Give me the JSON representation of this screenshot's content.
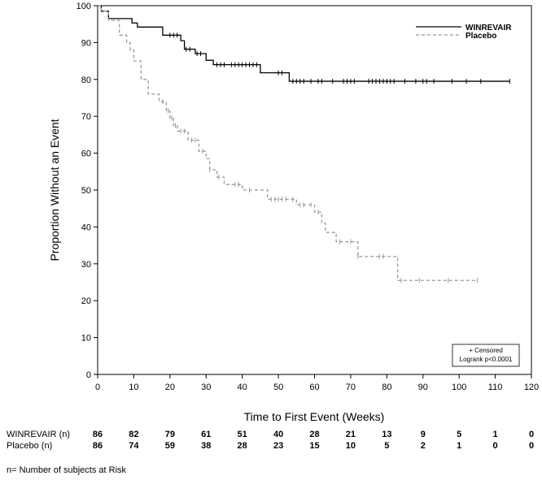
{
  "chart_data": {
    "type": "line",
    "step": true,
    "title": "",
    "xlabel": "Time to First Event (Weeks)",
    "ylabel": "Proportion Without an Event",
    "xlim": [
      0,
      120
    ],
    "ylim": [
      0,
      100
    ],
    "xticks": [
      0,
      10,
      20,
      30,
      40,
      50,
      60,
      70,
      80,
      90,
      100,
      110,
      120
    ],
    "yticks": [
      0,
      10,
      20,
      30,
      40,
      50,
      60,
      70,
      80,
      90,
      100
    ],
    "legend": {
      "position": "top-right",
      "entries": [
        "WINREVAIR",
        "Placebo"
      ]
    },
    "annotation": {
      "line1": "+ Censored",
      "line2": "Logrank p<0.0001"
    },
    "series": [
      {
        "name": "WINREVAIR",
        "color": "#000000",
        "dashed": false,
        "x": [
          0,
          1,
          3,
          9.5,
          11,
          18,
          23,
          24,
          27,
          30,
          32,
          45,
          53,
          114
        ],
        "y": [
          100,
          98.5,
          96.5,
          95.3,
          94.2,
          92,
          90.5,
          88.2,
          87,
          85.2,
          84,
          81.8,
          79.5,
          79.5
        ],
        "censored_x": [
          20,
          21,
          22,
          24.5,
          25.5,
          27.5,
          28.5,
          33,
          34,
          35,
          37,
          38,
          39,
          40,
          41,
          42,
          43,
          44,
          50,
          51,
          54,
          55,
          56,
          57,
          59,
          61,
          62,
          65,
          68,
          69,
          70,
          71,
          75,
          76,
          77,
          78,
          79,
          80,
          81,
          82,
          85,
          88,
          90,
          91,
          93,
          98,
          102,
          106,
          114
        ]
      },
      {
        "name": "Placebo",
        "color": "#999999",
        "dashed": true,
        "x": [
          0,
          1,
          3,
          6,
          8,
          9,
          10,
          12,
          14,
          17,
          19,
          20,
          21,
          22,
          25,
          28,
          30,
          31,
          33,
          35,
          40,
          47,
          55,
          60,
          62,
          63,
          66,
          72,
          83,
          105
        ],
        "y": [
          100,
          98.5,
          96,
          92,
          90,
          88,
          85,
          80,
          76,
          74,
          71.5,
          69.5,
          67.5,
          66,
          63.5,
          60.5,
          58.5,
          55.5,
          53.5,
          51.5,
          50,
          47.5,
          46,
          44,
          41,
          38.5,
          36,
          32,
          25.5,
          25.5
        ],
        "censored_x": [
          18,
          19.5,
          20.5,
          21.5,
          23,
          24,
          26,
          27,
          29,
          31,
          33.5,
          38,
          39,
          42,
          48,
          49,
          50,
          51,
          52,
          54,
          56,
          57,
          59,
          61,
          67,
          70,
          72,
          78,
          79,
          84,
          89,
          97,
          105
        ]
      }
    ],
    "risk_table": {
      "x": [
        0,
        10,
        20,
        30,
        40,
        50,
        60,
        70,
        80,
        90,
        100,
        110,
        120
      ],
      "rows": [
        {
          "label": "WINREVAIR (n)",
          "values": [
            "86",
            "82",
            "79",
            "61",
            "51",
            "40",
            "28",
            "21",
            "13",
            "9",
            "5",
            "1",
            "0"
          ]
        },
        {
          "label": "Placebo (n)",
          "values": [
            "86",
            "74",
            "59",
            "38",
            "28",
            "23",
            "15",
            "10",
            "5",
            "2",
            "1",
            "0",
            "0"
          ]
        }
      ],
      "footnote": "n= Number of subjects at Risk"
    }
  }
}
